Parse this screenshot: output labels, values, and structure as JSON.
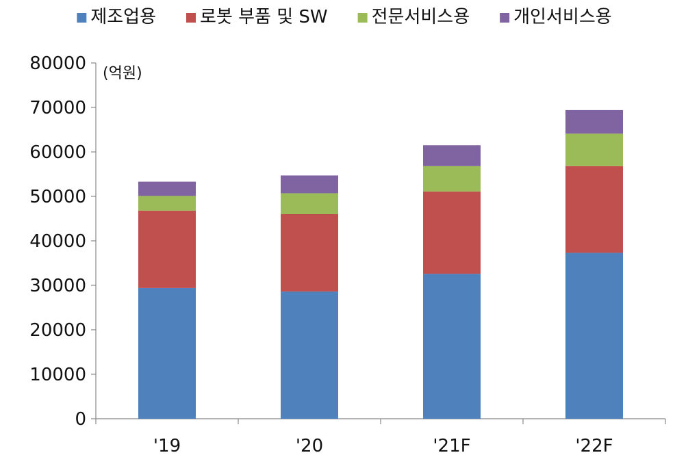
{
  "chart_data": {
    "type": "bar",
    "stacked": true,
    "title": "",
    "xlabel": "",
    "ylabel": "",
    "unit_label": "(억원)",
    "categories": [
      "'19",
      "'20",
      "'21F",
      "'22F"
    ],
    "ylim": [
      0,
      80000
    ],
    "yticks": [
      0,
      10000,
      20000,
      30000,
      40000,
      50000,
      60000,
      70000,
      80000
    ],
    "grid": false,
    "legend_position": "top",
    "series": [
      {
        "name": "제조업용",
        "color": "#4F81BD",
        "values": [
          29400,
          28600,
          32600,
          37300
        ]
      },
      {
        "name": "로봇 부품 및 SW",
        "color": "#C0504D",
        "values": [
          17400,
          17400,
          18500,
          19500
        ]
      },
      {
        "name": "전문서비스용",
        "color": "#9BBB59",
        "values": [
          3300,
          4700,
          5700,
          7300
        ]
      },
      {
        "name": "개인서비스용",
        "color": "#8064A2",
        "values": [
          3200,
          4000,
          4700,
          5300
        ]
      }
    ]
  }
}
